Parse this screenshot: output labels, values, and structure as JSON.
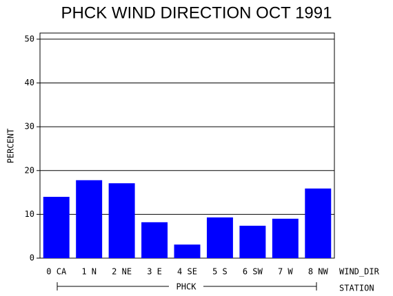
{
  "chart_data": {
    "type": "bar",
    "title": "PHCK WIND DIRECTION OCT 1991",
    "y_label": "PERCENT",
    "x_label": "WIND_DIR",
    "group_label": "PHCK",
    "group_axis_label": "STATION",
    "categories": [
      "0 CA",
      "1 N",
      "2 NE",
      "3 E",
      "4 SE",
      "5 S",
      "6 SW",
      "7 W",
      "8 NW"
    ],
    "values": [
      14.0,
      17.8,
      17.1,
      8.2,
      3.1,
      9.3,
      7.4,
      9.0,
      15.9
    ],
    "color": "#0000ff",
    "ylim": [
      0,
      51.4
    ],
    "yticks": [
      0,
      10,
      20,
      30,
      40,
      50
    ],
    "grid": true
  }
}
